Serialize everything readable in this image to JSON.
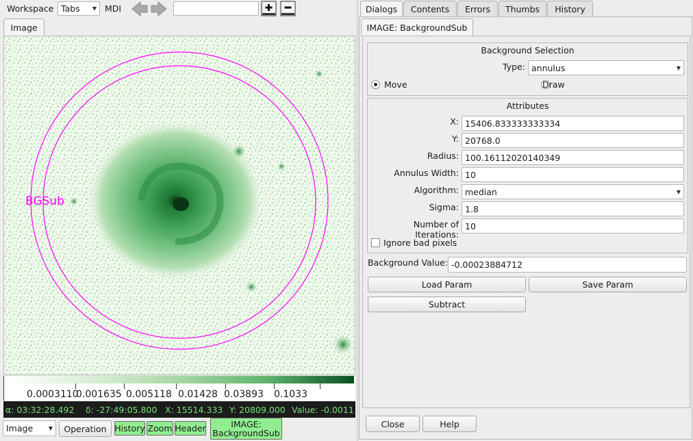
{
  "toolbar": {
    "workspace_label": "Workspace",
    "workspace_mode": "Tabs",
    "mdi_label": "MDI",
    "channel_value": "",
    "left_arrow_icon": "arrow-left-icon",
    "right_arrow_icon": "arrow-right-icon",
    "add_icon": "add-channel-icon",
    "remove_icon": "remove-channel-icon"
  },
  "left": {
    "tab_label": "Image",
    "overlay_label": "BGSub",
    "overlay_color": "#ff00ff",
    "colorbar_ticks": [
      "0.0003110",
      "0.001635",
      "0.005118",
      "0.01428",
      "0.03893",
      "0.1033"
    ],
    "status": {
      "ra": "α: 03:32:28.492",
      "dec": "δ: -27:49:05.800",
      "x": "X: 15514.333",
      "y": "Y: 20809.000",
      "value": "Value: -0.0011"
    }
  },
  "bottom_bar": {
    "image_select": "Image",
    "operation": "Operation",
    "plugins": [
      "History",
      "Zoom",
      "Header"
    ],
    "active_plugin_line1": "IMAGE:",
    "active_plugin_line2": "BackgroundSub",
    "plugin_color": "#90ee90"
  },
  "right": {
    "tabs": [
      "Dialogs",
      "Contents",
      "Errors",
      "Thumbs",
      "History"
    ],
    "active_tab": "Dialogs",
    "subtab": "IMAGE: BackgroundSub",
    "bg_selection": {
      "title": "Background Selection",
      "type_label": "Type:",
      "type_value": "annulus",
      "move_label": "Move",
      "draw_label": "Draw",
      "selected": "Move"
    },
    "attributes": {
      "title": "Attributes",
      "x_label": "X:",
      "x_value": "15406.833333333334",
      "y_label": "Y:",
      "y_value": "20768.0",
      "radius_label": "Radius:",
      "radius_value": "100.16112020140349",
      "annulus_label": "Annulus Width:",
      "annulus_value": "10",
      "algorithm_label": "Algorithm:",
      "algorithm_value": "median",
      "sigma_label": "Sigma:",
      "sigma_value": "1.8",
      "iterations_label": "Number of Iterations:",
      "iterations_value": "10",
      "ignore_label": "Ignore bad pixels",
      "ignore_checked": false
    },
    "bg_value_label": "Background Value:",
    "bg_value": "-0.00023884712",
    "load_param": "Load Param",
    "save_param": "Save Param",
    "subtract": "Subtract",
    "close": "Close",
    "help": "Help"
  }
}
